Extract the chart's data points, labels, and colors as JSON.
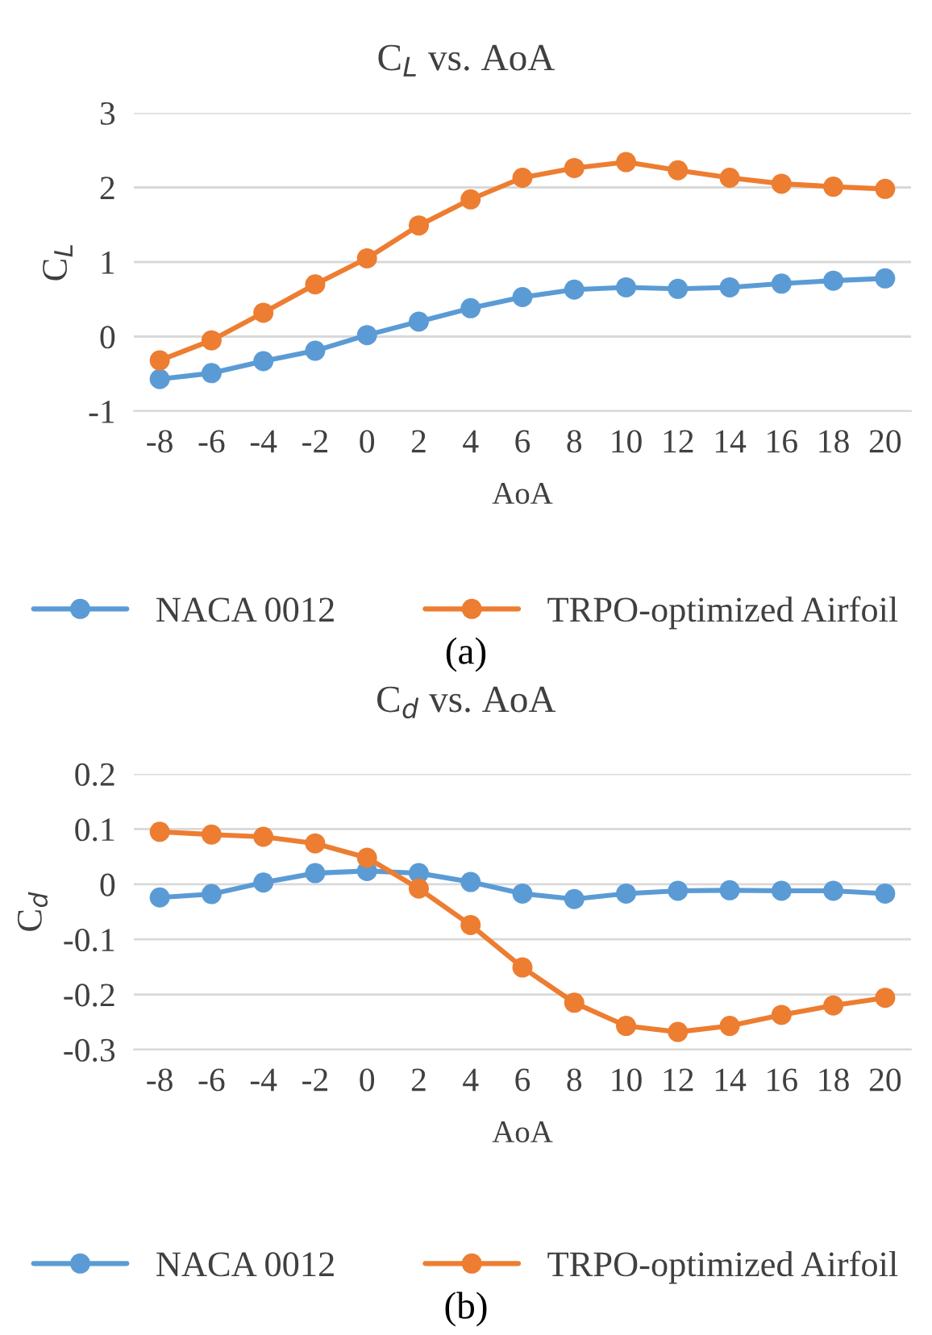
{
  "chart_data": [
    {
      "type": "line",
      "title": "C$_{L}$ vs. AoA",
      "xlabel": "AoA",
      "ylabel": "C$_{L}$",
      "categories": [
        "-8",
        "-6",
        "-4",
        "-2",
        "0",
        "2",
        "4",
        "6",
        "8",
        "10",
        "12",
        "14",
        "16",
        "18",
        "20"
      ],
      "series": [
        {
          "name": "NACA 0012",
          "color": "#5b9bd5",
          "values": [
            -0.57,
            -0.49,
            -0.33,
            -0.19,
            0.02,
            0.2,
            0.38,
            0.53,
            0.63,
            0.66,
            0.64,
            0.66,
            0.71,
            0.75,
            0.78
          ]
        },
        {
          "name": "TRPO-optimized Airfoil",
          "color": "#ed7d31",
          "values": [
            -0.32,
            -0.05,
            0.32,
            0.7,
            1.05,
            1.49,
            1.84,
            2.13,
            2.26,
            2.34,
            2.23,
            2.13,
            2.05,
            2.01,
            1.98
          ]
        }
      ],
      "ylim": [
        -1,
        3
      ],
      "yticks": [
        {
          "value": -1,
          "label": "-1"
        },
        0,
        1,
        2,
        3
      ],
      "grid": "y",
      "legend": "bottom",
      "marker": "circle",
      "line_style": "solid",
      "annotations": [
        "(a)"
      ]
    },
    {
      "type": "line",
      "title": "C$_{d}$ vs. AoA",
      "xlabel": "AoA",
      "ylabel": "C$_{d}$",
      "categories": [
        "-8",
        "-6",
        "-4",
        "-2",
        "0",
        "2",
        "4",
        "6",
        "8",
        "10",
        "12",
        "14",
        "16",
        "18",
        "20"
      ],
      "series": [
        {
          "name": "NACA 0012",
          "color": "#5b9bd5",
          "values": [
            -0.024,
            -0.018,
            0.003,
            0.02,
            0.024,
            0.02,
            0.004,
            -0.017,
            -0.027,
            -0.017,
            -0.012,
            -0.011,
            -0.012,
            -0.012,
            -0.017
          ]
        },
        {
          "name": "TRPO-optimized Airfoil",
          "color": "#ed7d31",
          "values": [
            0.095,
            0.09,
            0.086,
            0.074,
            0.048,
            -0.008,
            -0.074,
            -0.151,
            -0.215,
            -0.257,
            -0.268,
            -0.257,
            -0.237,
            -0.22,
            -0.206
          ]
        }
      ],
      "ylim": [
        -0.3,
        0.2
      ],
      "yticks": [
        {
          "value": -0.3,
          "label": "-0.3"
        },
        {
          "value": -0.2,
          "label": "-0.2"
        },
        {
          "value": -0.1,
          "label": "-0.1"
        },
        0,
        0.1,
        0.2
      ],
      "grid": "y",
      "legend": "bottom",
      "marker": "circle",
      "line_style": "solid",
      "annotations": [
        "(b)"
      ]
    }
  ]
}
